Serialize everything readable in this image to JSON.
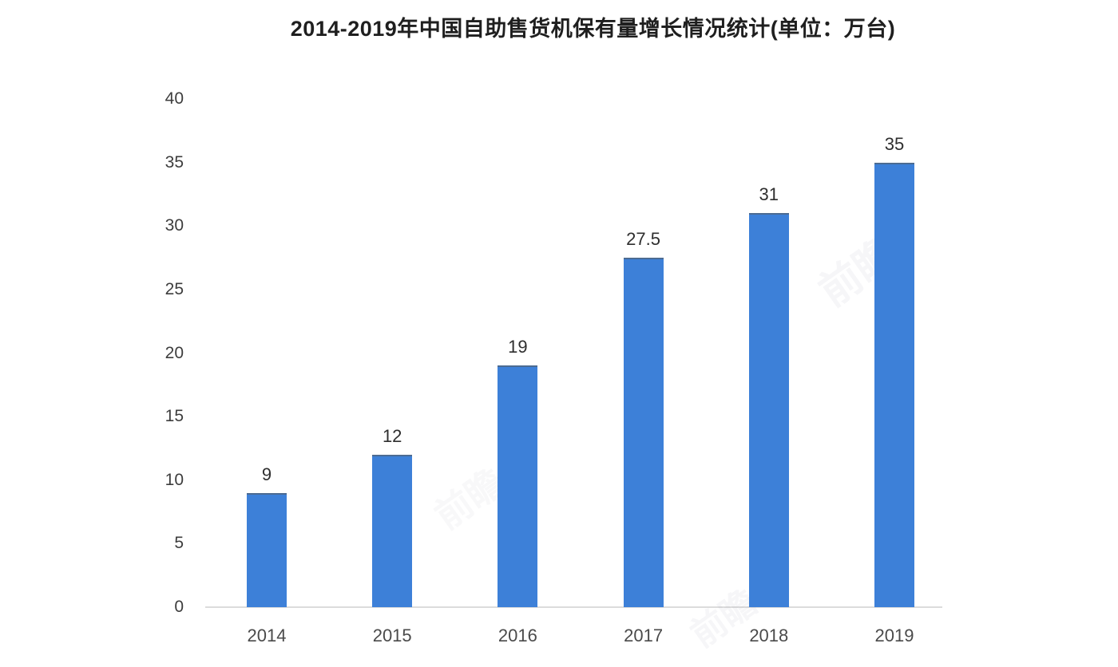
{
  "title": "2014-2019年中国自助售货机保有量增长情况统计(单位：万台)",
  "watermark": {
    "text": "前瞻"
  },
  "chart_data": {
    "type": "bar",
    "title": "2014-2019年中国自助售货机保有量增长情况统计(单位：万台)",
    "categories": [
      "2014",
      "2015",
      "2016",
      "2017",
      "2018",
      "2019"
    ],
    "values": [
      9,
      12,
      19,
      27.5,
      31,
      35
    ],
    "data_labels": [
      "9",
      "12",
      "19",
      "27.5",
      "31",
      "35"
    ],
    "xlabel": "",
    "ylabel": "",
    "ylim": [
      0,
      40
    ],
    "yticks": [
      0,
      5,
      10,
      15,
      20,
      25,
      30,
      35,
      40
    ],
    "grid": false,
    "legend": "none",
    "bar_color": "#3d80d8",
    "axis_line_color": "#dcdcdc",
    "label_color": "#2e2e2e",
    "tick_color": "#3d3d3d"
  }
}
